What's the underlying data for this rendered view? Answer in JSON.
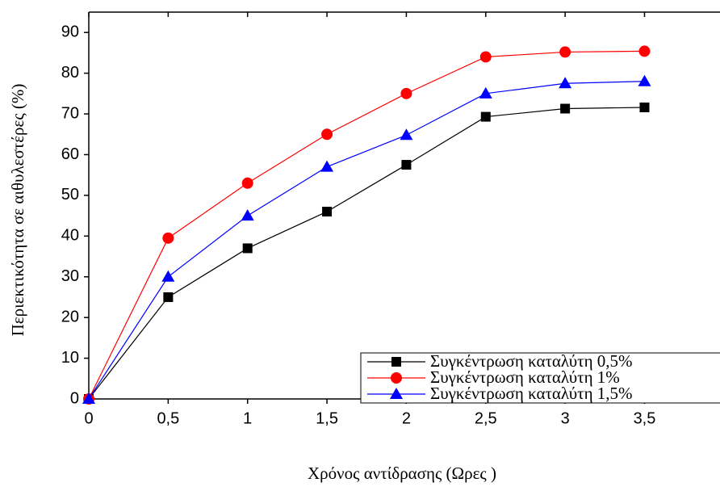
{
  "chart_data": {
    "type": "line",
    "x_label": "Χρόνος αντίδρασης (Ωρες )",
    "y_label": "Περιεκτικότητα σε αιθυλεστέρες (%)",
    "x": [
      0,
      0.5,
      1,
      1.5,
      2,
      2.5,
      3,
      3.5
    ],
    "series": [
      {
        "name": "Συγκέντρωση καταλύτη 0,5%",
        "color": "#000000",
        "marker": "square",
        "values": [
          0,
          25,
          37,
          46,
          57.5,
          69.3,
          71.3,
          71.6
        ]
      },
      {
        "name": "Συγκέντρωση καταλύτη 1%",
        "color": "#ff0000",
        "marker": "circle",
        "values": [
          0,
          39.5,
          53,
          65,
          75,
          84,
          85.2,
          85.4
        ]
      },
      {
        "name": "Συγκέντρωση καταλύτη 1,5%",
        "color": "#0000ff",
        "marker": "triangle",
        "values": [
          0,
          30,
          45,
          57,
          64.8,
          75,
          77.5,
          78
        ]
      }
    ],
    "xlim": [
      0,
      3.95
    ],
    "ylim": [
      0,
      95
    ],
    "xticks": [
      0,
      {
        "value": 0.5,
        "label": "0,5"
      },
      1,
      {
        "value": 1.5,
        "label": "1,5"
      },
      2,
      {
        "value": 2.5,
        "label": "2,5"
      },
      3,
      {
        "value": 3.5,
        "label": "3,5"
      }
    ],
    "yticks": [
      0,
      10,
      20,
      30,
      40,
      50,
      60,
      70,
      80,
      90
    ],
    "legend": "lower right",
    "grid": false
  }
}
